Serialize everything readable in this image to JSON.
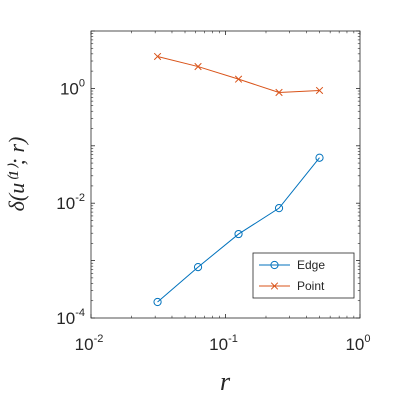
{
  "chart_data": {
    "type": "line",
    "title": "",
    "xlabel": "r",
    "ylabel": "δ(u⁽¹⁾; r)",
    "xscale": "log",
    "yscale": "log",
    "xlim": [
      0.01,
      1
    ],
    "ylim": [
      0.0001,
      10
    ],
    "grid": false,
    "legend_position": "bottom-right",
    "xticks": [
      {
        "value": 0.01,
        "base": "10",
        "exp": "-2"
      },
      {
        "value": 0.1,
        "base": "10",
        "exp": "-1"
      },
      {
        "value": 1,
        "base": "10",
        "exp": "0"
      }
    ],
    "yticks": [
      {
        "value": 0.0001,
        "base": "10",
        "exp": "-4"
      },
      {
        "value": 0.01,
        "base": "10",
        "exp": "-2"
      },
      {
        "value": 1,
        "base": "10",
        "exp": "0"
      }
    ],
    "series": [
      {
        "name": "Edge",
        "color": "#0072BD",
        "marker": "circle",
        "x": [
          0.03125,
          0.0625,
          0.125,
          0.25,
          0.5
        ],
        "y": [
          0.00019,
          0.00077,
          0.0029,
          0.0082,
          0.062
        ]
      },
      {
        "name": "Point",
        "color": "#D95319",
        "marker": "x",
        "x": [
          0.03125,
          0.0625,
          0.125,
          0.25,
          0.5
        ],
        "y": [
          3.6,
          2.4,
          1.45,
          0.85,
          0.92
        ]
      }
    ]
  }
}
